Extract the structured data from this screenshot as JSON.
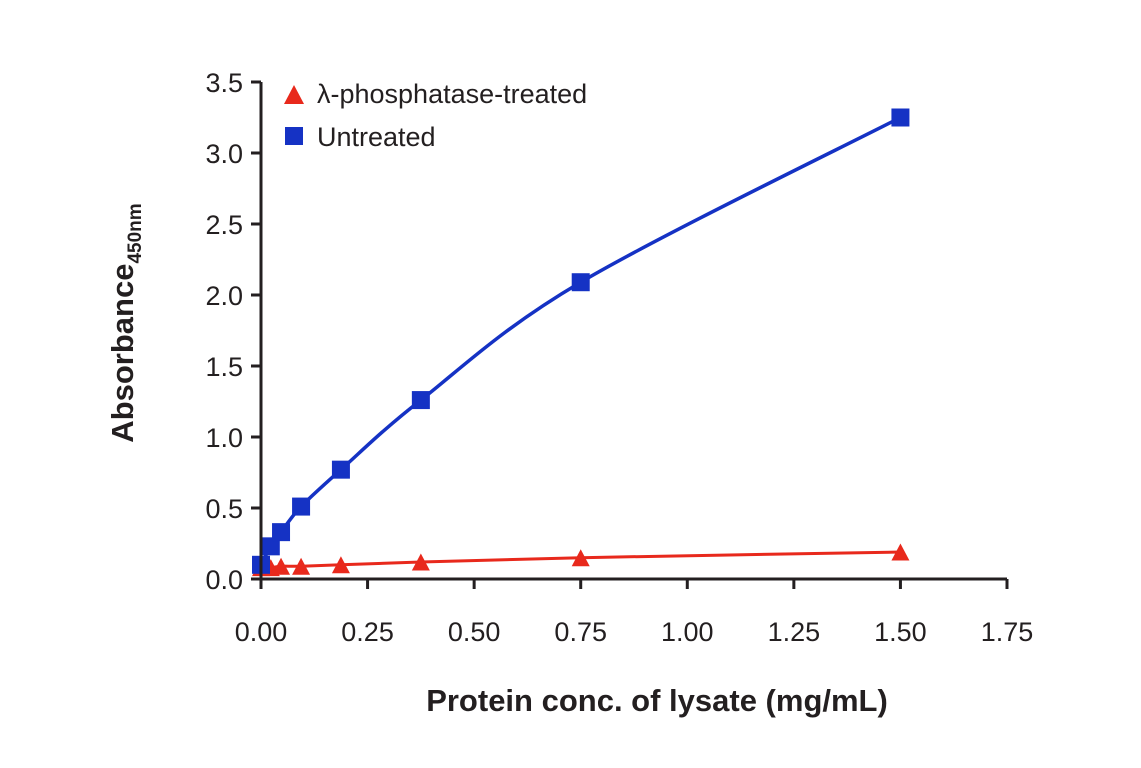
{
  "chart_data": {
    "type": "line",
    "title": "",
    "xlabel": "Protein conc. of lysate (mg/mL)",
    "ylabel_main": "Absorbance",
    "ylabel_subscript": "450nm",
    "xlim": [
      0,
      1.75
    ],
    "ylim": [
      0,
      3.5
    ],
    "x_ticks": [
      "0.00",
      "0.25",
      "0.50",
      "0.75",
      "1.00",
      "1.25",
      "1.50",
      "1.75"
    ],
    "x_tick_values": [
      0,
      0.25,
      0.5,
      0.75,
      1.0,
      1.25,
      1.5,
      1.75
    ],
    "y_ticks": [
      "0.0",
      "0.5",
      "1.0",
      "1.5",
      "2.0",
      "2.5",
      "3.0",
      "3.5"
    ],
    "y_tick_values": [
      0,
      0.5,
      1.0,
      1.5,
      2.0,
      2.5,
      3.0,
      3.5
    ],
    "grid": false,
    "legend_position": "top-left",
    "series": [
      {
        "name": "λ-phosphatase-treated",
        "marker": "triangle",
        "color": "#e8291c",
        "x": [
          0.0,
          0.023,
          0.047,
          0.094,
          0.1875,
          0.375,
          0.75,
          1.5
        ],
        "values": [
          0.08,
          0.08,
          0.09,
          0.09,
          0.1,
          0.12,
          0.15,
          0.19
        ]
      },
      {
        "name": "Untreated",
        "marker": "square",
        "color": "#1532c4",
        "x": [
          0.0,
          0.023,
          0.047,
          0.094,
          0.1875,
          0.375,
          0.75,
          1.5
        ],
        "values": [
          0.1,
          0.23,
          0.33,
          0.51,
          0.77,
          1.26,
          2.09,
          3.25
        ]
      }
    ]
  }
}
